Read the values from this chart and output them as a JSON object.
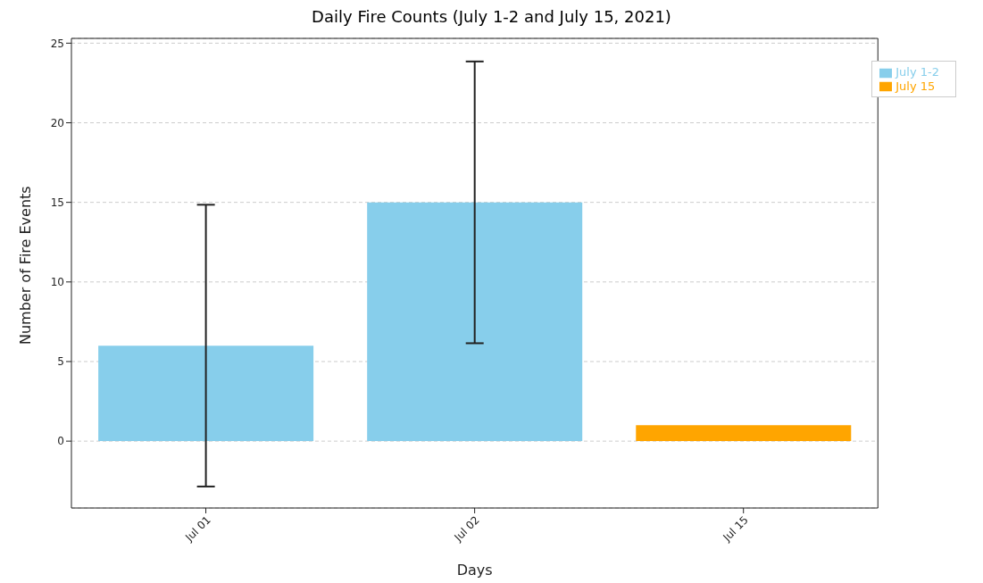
{
  "chart_data": {
    "type": "bar",
    "title": "Daily Fire Counts (July 1-2 and July 15, 2021)",
    "xlabel": "Days",
    "ylabel": "Number of Fire Events",
    "categories": [
      "Jul 01",
      "Jul 02",
      "Jul 15"
    ],
    "series": [
      {
        "name": "July 1-2",
        "color": "#87ceeb",
        "values": [
          6,
          15,
          null
        ],
        "errors": [
          8.85,
          8.85,
          null
        ]
      },
      {
        "name": "July 15",
        "color": "#ffa500",
        "values": [
          null,
          null,
          1
        ]
      }
    ],
    "ylim": [
      -4.2,
      25.3
    ],
    "yticks": [
      0,
      5,
      10,
      15,
      20,
      25
    ],
    "grid": "y",
    "legend": "top right"
  }
}
